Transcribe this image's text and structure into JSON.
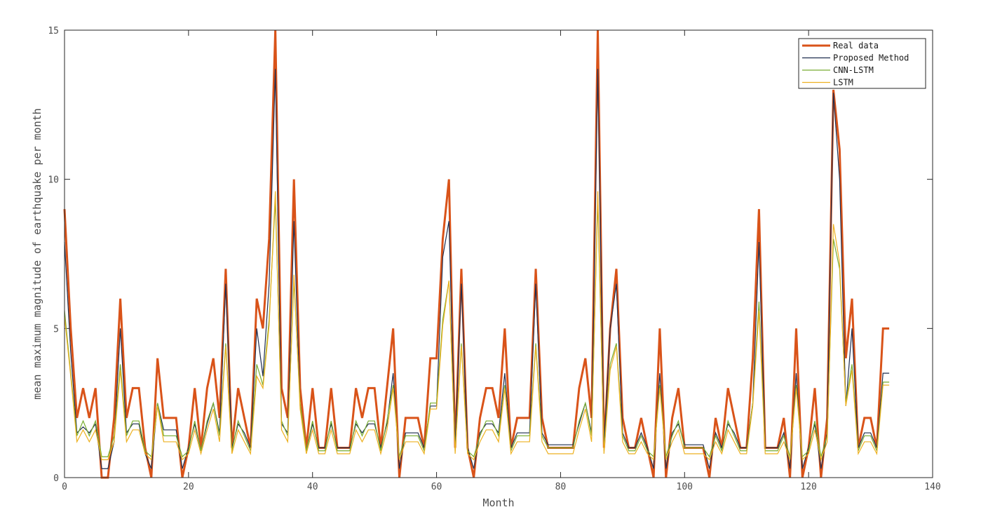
{
  "chart_data": {
    "type": "line",
    "title": "",
    "xlabel": "Month",
    "ylabel": "mean maximum magnitude of earthquake per month",
    "xlim": [
      0,
      140
    ],
    "ylim": [
      0,
      15
    ],
    "xticks": [
      0,
      20,
      40,
      60,
      80,
      100,
      120,
      140
    ],
    "yticks": [
      0,
      5,
      10,
      15
    ],
    "grid": false,
    "legend": "top-right",
    "series": [
      {
        "name": "Real data",
        "color": "#D95319",
        "y": [
          9,
          5,
          2,
          3,
          2,
          3,
          0,
          0,
          2,
          6,
          2,
          3,
          3,
          1,
          0,
          4,
          2,
          2,
          2,
          0,
          1,
          3,
          1,
          3,
          4,
          2,
          7,
          1,
          3,
          2,
          1,
          6,
          5,
          8,
          15,
          3,
          2,
          10,
          3,
          1,
          3,
          1,
          1,
          3,
          1,
          1,
          1,
          3,
          2,
          3,
          3,
          1,
          3,
          5,
          0,
          2,
          2,
          2,
          1,
          4,
          4,
          8,
          10,
          1,
          7,
          1,
          0,
          2,
          3,
          3,
          2,
          5,
          1,
          2,
          2,
          2,
          7,
          2,
          1,
          1,
          1,
          1,
          1,
          3,
          4,
          2,
          15,
          1,
          5,
          7,
          2,
          1,
          1,
          2,
          1,
          0,
          5,
          0,
          2,
          3,
          1,
          1,
          1,
          1,
          0,
          2,
          1,
          3,
          2,
          1,
          1,
          4,
          9,
          1,
          1,
          1,
          2,
          0,
          5,
          0,
          1,
          3,
          0,
          2,
          13,
          11,
          4,
          6,
          1,
          2,
          2,
          1,
          5,
          5
        ]
      },
      {
        "name": "Proposed Method",
        "color": "#1F2D4F",
        "y": [
          7.9,
          4.2,
          1.5,
          1.7,
          1.5,
          1.8,
          0.3,
          0.3,
          1.2,
          5.0,
          1.5,
          1.8,
          1.8,
          0.8,
          0.3,
          2.5,
          1.6,
          1.6,
          1.6,
          0.3,
          1.0,
          1.8,
          0.9,
          1.8,
          2.5,
          1.5,
          6.5,
          1.0,
          1.8,
          1.5,
          1.0,
          5.0,
          3.4,
          6.5,
          13.7,
          1.8,
          1.5,
          8.6,
          2.4,
          0.9,
          1.8,
          1.0,
          1.0,
          1.8,
          1.0,
          1.0,
          1.0,
          1.8,
          1.5,
          1.8,
          1.8,
          1.0,
          1.8,
          3.5,
          0.3,
          1.5,
          1.5,
          1.5,
          1.0,
          2.4,
          2.4,
          7.4,
          8.6,
          1.0,
          6.5,
          1.0,
          0.3,
          1.5,
          1.8,
          1.8,
          1.5,
          3.5,
          1.0,
          1.5,
          1.5,
          1.5,
          6.5,
          1.5,
          1.1,
          1.1,
          1.1,
          1.1,
          1.1,
          1.8,
          2.5,
          1.5,
          13.7,
          1.0,
          5.0,
          6.5,
          1.5,
          1.0,
          1.0,
          1.5,
          1.0,
          0.3,
          3.5,
          0.3,
          1.5,
          1.8,
          1.1,
          1.1,
          1.1,
          1.1,
          0.3,
          1.5,
          1.0,
          1.8,
          1.5,
          1.0,
          1.0,
          2.5,
          7.9,
          1.0,
          1.0,
          1.0,
          1.5,
          0.3,
          3.5,
          0.3,
          1.0,
          1.8,
          0.3,
          1.5,
          12.9,
          10.0,
          2.4,
          5.0,
          1.0,
          1.5,
          1.5,
          1.0,
          3.5,
          3.5
        ]
      },
      {
        "name": "CNN-LSTM",
        "color": "#77AC30",
        "y": [
          5.6,
          3.5,
          1.4,
          1.9,
          1.4,
          1.9,
          0.7,
          0.7,
          1.4,
          3.8,
          1.4,
          1.9,
          1.9,
          0.9,
          0.7,
          2.5,
          1.4,
          1.4,
          1.4,
          0.7,
          0.9,
          1.9,
          0.9,
          1.9,
          2.5,
          1.4,
          4.5,
          0.9,
          1.9,
          1.4,
          0.9,
          3.8,
          3.1,
          5.3,
          9.3,
          1.9,
          1.4,
          6.6,
          2.5,
          0.9,
          1.9,
          0.9,
          0.9,
          1.9,
          0.9,
          0.9,
          0.9,
          1.9,
          1.4,
          1.9,
          1.9,
          0.9,
          1.9,
          3.1,
          0.7,
          1.4,
          1.4,
          1.4,
          0.9,
          2.5,
          2.5,
          5.3,
          6.6,
          0.9,
          4.5,
          0.9,
          0.7,
          1.4,
          1.9,
          1.9,
          1.4,
          3.1,
          0.9,
          1.4,
          1.4,
          1.4,
          4.5,
          1.4,
          1.0,
          1.0,
          1.0,
          1.0,
          1.0,
          1.9,
          2.5,
          1.4,
          9.3,
          0.9,
          3.8,
          4.5,
          1.4,
          0.9,
          0.9,
          1.4,
          0.9,
          0.7,
          3.1,
          0.7,
          1.4,
          1.9,
          1.0,
          1.0,
          1.0,
          1.0,
          0.7,
          1.4,
          0.9,
          1.9,
          1.4,
          0.9,
          0.9,
          2.5,
          5.9,
          0.9,
          0.9,
          0.9,
          1.4,
          0.7,
          3.1,
          0.7,
          0.9,
          1.9,
          0.7,
          1.4,
          8.0,
          7.0,
          2.5,
          3.8,
          0.9,
          1.4,
          1.4,
          0.9,
          3.2,
          3.2
        ]
      },
      {
        "name": "LSTM",
        "color": "#EDB120",
        "y": [
          5.4,
          3.4,
          1.2,
          1.6,
          1.2,
          1.6,
          0.6,
          0.6,
          1.2,
          3.6,
          1.2,
          1.6,
          1.6,
          0.8,
          0.6,
          2.4,
          1.2,
          1.2,
          1.2,
          0.6,
          0.8,
          1.6,
          0.8,
          1.6,
          2.3,
          1.2,
          4.4,
          0.8,
          1.6,
          1.2,
          0.8,
          3.4,
          3.0,
          5.1,
          9.6,
          1.6,
          1.2,
          6.8,
          2.3,
          0.8,
          1.6,
          0.8,
          0.8,
          1.6,
          0.8,
          0.8,
          0.8,
          1.6,
          1.2,
          1.6,
          1.6,
          0.8,
          1.6,
          3.0,
          0.6,
          1.2,
          1.2,
          1.2,
          0.8,
          2.3,
          2.3,
          5.1,
          6.6,
          0.8,
          4.4,
          0.8,
          0.6,
          1.2,
          1.6,
          1.6,
          1.2,
          3.0,
          0.8,
          1.2,
          1.2,
          1.2,
          4.4,
          1.2,
          0.8,
          0.8,
          0.8,
          0.8,
          0.8,
          1.6,
          2.3,
          1.2,
          9.6,
          0.8,
          3.6,
          4.4,
          1.2,
          0.8,
          0.8,
          1.2,
          0.8,
          0.6,
          3.0,
          0.6,
          1.2,
          1.6,
          0.8,
          0.8,
          0.8,
          0.8,
          0.6,
          1.2,
          0.8,
          1.6,
          1.2,
          0.8,
          0.8,
          2.4,
          5.6,
          0.8,
          0.8,
          0.8,
          1.2,
          0.6,
          3.0,
          0.6,
          0.8,
          1.6,
          0.6,
          1.2,
          8.5,
          7.2,
          2.4,
          3.6,
          0.8,
          1.2,
          1.2,
          0.8,
          3.1,
          3.1
        ]
      }
    ]
  }
}
